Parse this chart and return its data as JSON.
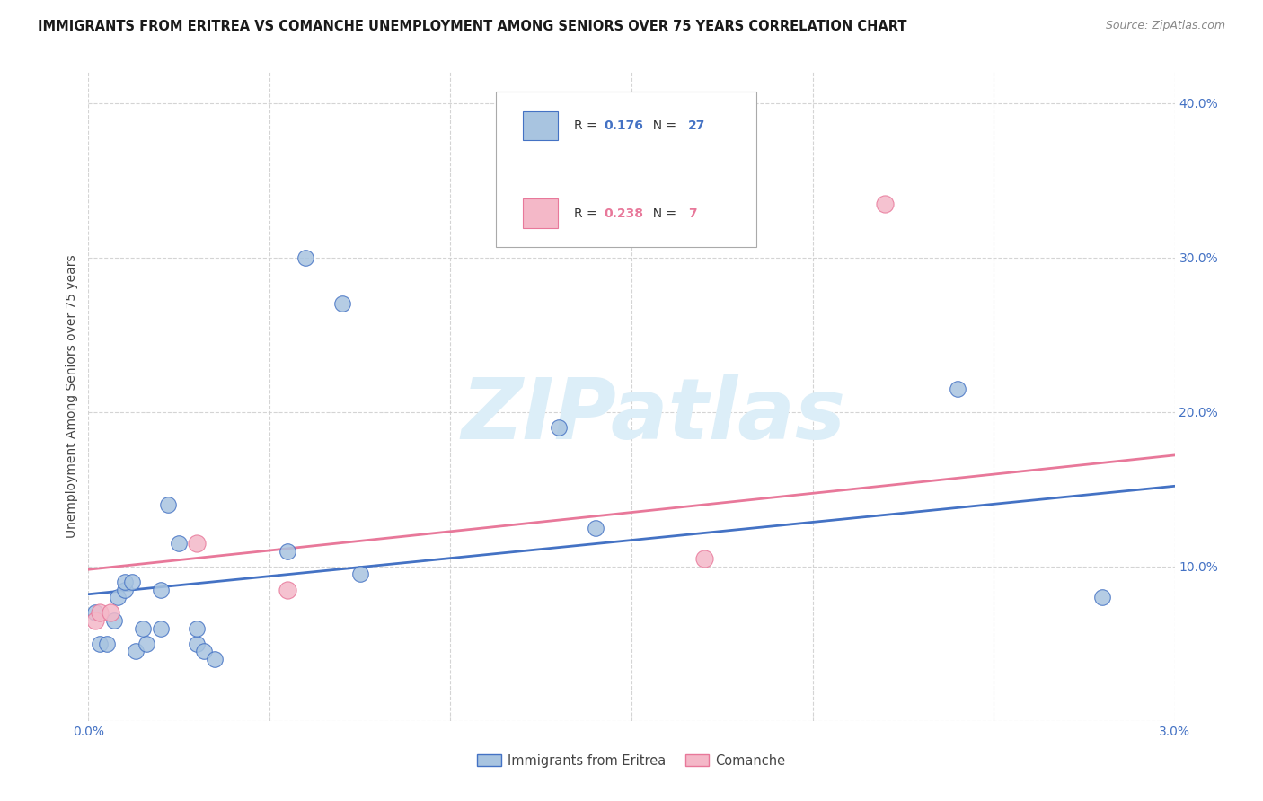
{
  "title": "IMMIGRANTS FROM ERITREA VS COMANCHE UNEMPLOYMENT AMONG SENIORS OVER 75 YEARS CORRELATION CHART",
  "source": "Source: ZipAtlas.com",
  "ylabel": "Unemployment Among Seniors over 75 years",
  "xlim": [
    0.0,
    0.03
  ],
  "ylim": [
    0.0,
    0.42
  ],
  "xticks": [
    0.0,
    0.005,
    0.01,
    0.015,
    0.02,
    0.025,
    0.03
  ],
  "yticks": [
    0.0,
    0.1,
    0.2,
    0.3,
    0.4
  ],
  "xtick_labels": [
    "0.0%",
    "",
    "",
    "",
    "",
    "",
    "3.0%"
  ],
  "ytick_labels_right": [
    "",
    "10.0%",
    "20.0%",
    "30.0%",
    "40.0%"
  ],
  "legend1_label": "Immigrants from Eritrea",
  "legend2_label": "Comanche",
  "R1": 0.176,
  "N1": 27,
  "R2": 0.238,
  "N2": 7,
  "color1": "#a8c4e0",
  "color1_line": "#4472c4",
  "color2": "#f4b8c8",
  "color2_line": "#e8789a",
  "scatter1_x": [
    0.0002,
    0.0003,
    0.0005,
    0.0007,
    0.0008,
    0.001,
    0.001,
    0.0012,
    0.0013,
    0.0015,
    0.0016,
    0.002,
    0.002,
    0.0022,
    0.0025,
    0.003,
    0.003,
    0.0032,
    0.0035,
    0.0055,
    0.006,
    0.007,
    0.0075,
    0.013,
    0.014,
    0.024,
    0.028
  ],
  "scatter1_y": [
    0.07,
    0.05,
    0.05,
    0.065,
    0.08,
    0.085,
    0.09,
    0.09,
    0.045,
    0.06,
    0.05,
    0.06,
    0.085,
    0.14,
    0.115,
    0.05,
    0.06,
    0.045,
    0.04,
    0.11,
    0.3,
    0.27,
    0.095,
    0.19,
    0.125,
    0.215,
    0.08
  ],
  "scatter2_x": [
    0.0002,
    0.0003,
    0.0006,
    0.003,
    0.0055,
    0.017,
    0.022
  ],
  "scatter2_y": [
    0.065,
    0.07,
    0.07,
    0.115,
    0.085,
    0.105,
    0.335
  ],
  "trendline1_x": [
    0.0,
    0.03
  ],
  "trendline1_y": [
    0.082,
    0.152
  ],
  "trendline2_x": [
    0.0,
    0.03
  ],
  "trendline2_y": [
    0.098,
    0.172
  ],
  "watermark_text": "ZIPatlas",
  "watermark_color": "#dceef8",
  "background_color": "#ffffff",
  "grid_color": "#d0d0d0",
  "title_fontsize": 10.5,
  "axis_label_fontsize": 10,
  "tick_fontsize": 10,
  "legend_fontsize": 10
}
